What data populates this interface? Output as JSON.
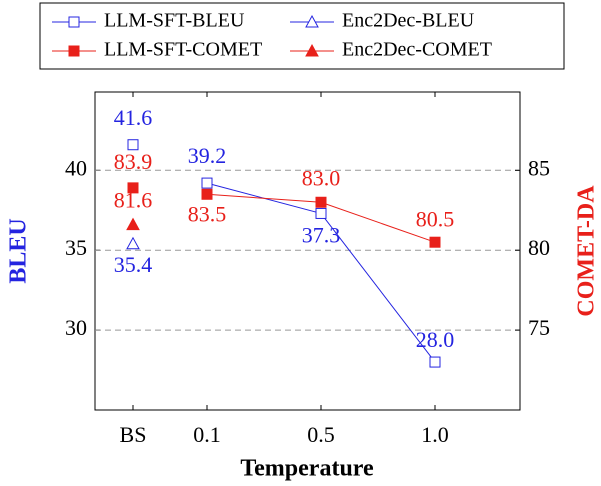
{
  "chart_data": {
    "type": "line",
    "xlabel": "Temperature",
    "ylabel": "BLEU",
    "y2label": "COMET-DA",
    "categories": [
      "BS",
      "0.1",
      "0.5",
      "1.0"
    ],
    "ylim": [
      25,
      44.9
    ],
    "yticks": [
      30,
      35,
      40
    ],
    "y2lim": [
      70,
      89.9
    ],
    "y2ticks": [
      75,
      80,
      85
    ],
    "grid": true,
    "legend": "top",
    "series": [
      {
        "name": "LLM-SFT-BLEU",
        "color": "#2424e0",
        "marker": "square-open",
        "values": [
          41.6,
          39.2,
          37.3,
          28.0
        ],
        "value_labels": [
          "41.6",
          "39.2",
          "37.3",
          "28.0"
        ]
      },
      {
        "name": "Enc2Dec-BLEU",
        "color": "#2424e0",
        "marker": "triangle-open",
        "values": [
          35.4,
          null,
          null,
          null
        ],
        "value_labels": [
          "35.4",
          null,
          null,
          null
        ]
      },
      {
        "name": "LLM-SFT-COMET",
        "color": "#e8201a",
        "marker": "square",
        "axis": "y2",
        "values": [
          83.9,
          83.5,
          83.0,
          80.5
        ],
        "value_labels": [
          "83.9",
          "83.5",
          "83.0",
          "80.5"
        ]
      },
      {
        "name": "Enc2Dec-COMET",
        "color": "#e8201a",
        "marker": "triangle",
        "axis": "y2",
        "values": [
          81.6,
          null,
          null,
          null
        ],
        "value_labels": [
          "81.6",
          null,
          null,
          null
        ]
      }
    ]
  }
}
